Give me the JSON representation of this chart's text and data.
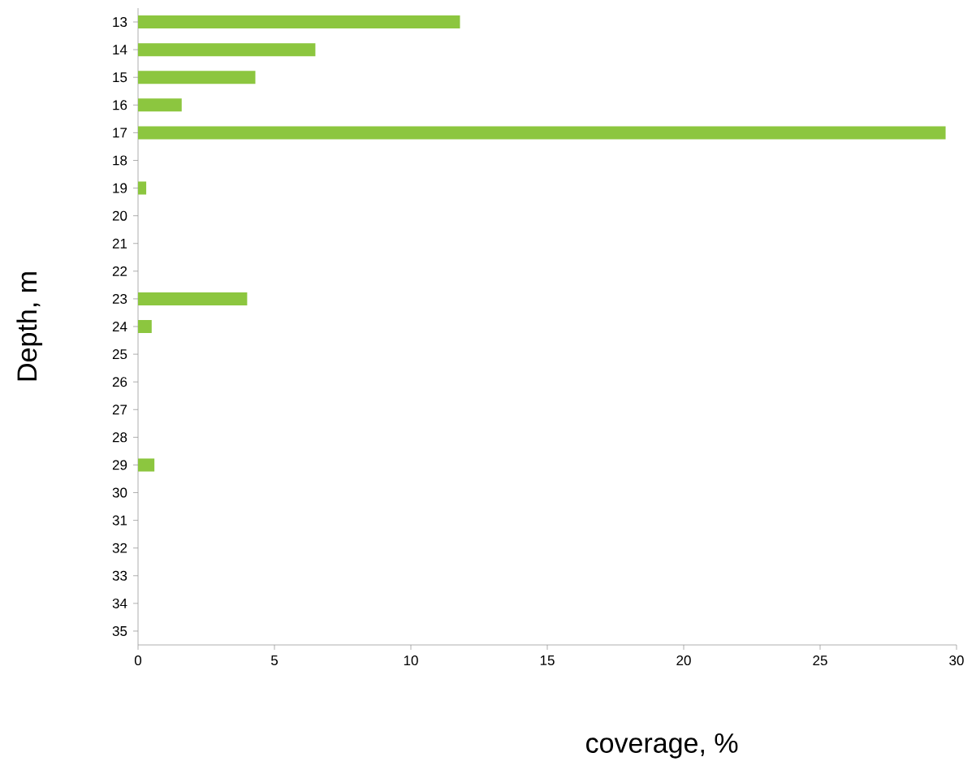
{
  "chart_data": {
    "type": "bar",
    "orientation": "horizontal",
    "xlabel": "coverage, %",
    "ylabel": "Depth, m",
    "categories": [
      "13",
      "14",
      "15",
      "16",
      "17",
      "18",
      "19",
      "20",
      "21",
      "22",
      "23",
      "24",
      "25",
      "26",
      "27",
      "28",
      "29",
      "30",
      "31",
      "32",
      "33",
      "34",
      "35"
    ],
    "values": [
      11.8,
      6.5,
      4.3,
      1.6,
      29.6,
      0,
      0.3,
      0,
      0,
      0,
      4.0,
      0.5,
      0,
      0,
      0,
      0,
      0.6,
      0,
      0,
      0,
      0,
      0,
      0
    ],
    "color": "#8cc63f",
    "xlim": [
      0,
      30
    ],
    "xticks": [
      0,
      5,
      10,
      15,
      20,
      25,
      30
    ],
    "grid": false
  }
}
